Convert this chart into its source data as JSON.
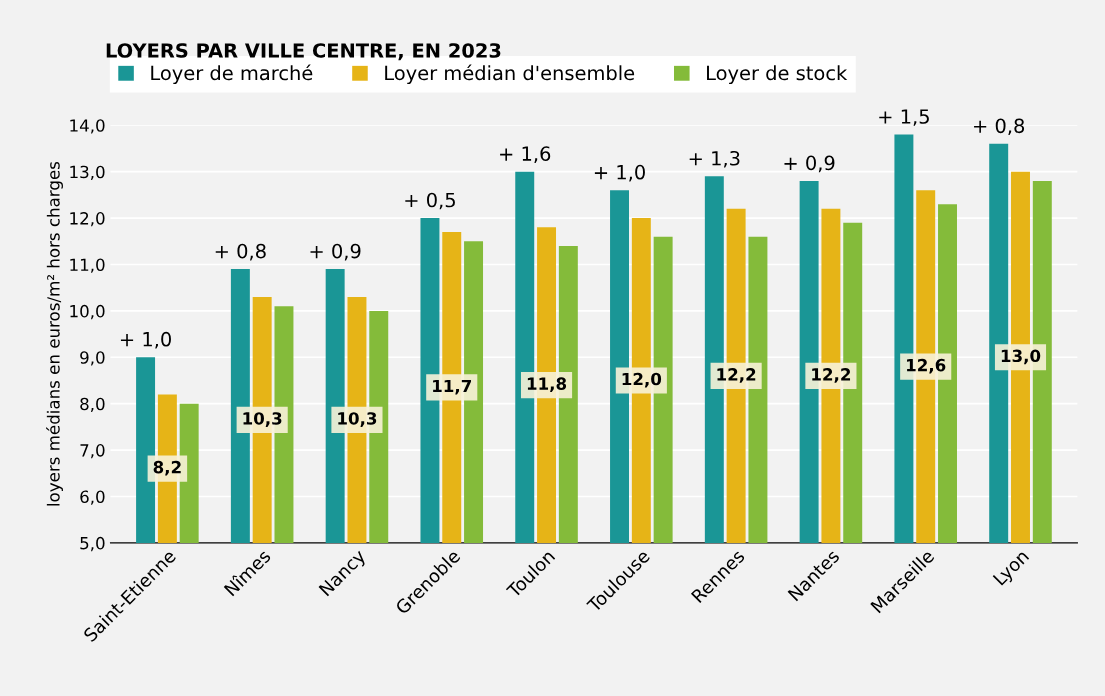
{
  "chart_data": {
    "type": "bar",
    "title": "LOYERS PAR VILLE CENTRE, EN 2023",
    "ylabel": "loyers médians en euros/m² hors charges",
    "categories": [
      "Saint-Etienne",
      "Nîmes",
      "Nancy",
      "Grenoble",
      "Toulon",
      "Toulouse",
      "Rennes",
      "Nantes",
      "Marseille",
      "Lyon"
    ],
    "series": [
      {
        "name": "Loyer de marché",
        "color": "#1a9696",
        "values": [
          9.0,
          10.9,
          10.9,
          12.0,
          13.0,
          12.6,
          12.9,
          12.8,
          13.8,
          13.6
        ]
      },
      {
        "name": "Loyer médian d'ensemble",
        "color": "#e6b417",
        "values": [
          8.2,
          10.3,
          10.3,
          11.7,
          11.8,
          12.0,
          12.2,
          12.2,
          12.6,
          13.0
        ],
        "value_labels": [
          "8,2",
          "10,3",
          "10,3",
          "11,7",
          "11,8",
          "12,0",
          "12,2",
          "12,2",
          "12,6",
          "13,0"
        ]
      },
      {
        "name": "Loyer de stock",
        "color": "#84bb3a",
        "values": [
          8.0,
          10.1,
          10.0,
          11.5,
          11.4,
          11.6,
          11.6,
          11.9,
          12.3,
          12.8
        ]
      }
    ],
    "ylim": [
      5,
      14
    ],
    "yticks": [
      {
        "value": 5,
        "label": "5,0"
      },
      {
        "value": 6,
        "label": "6,0"
      },
      {
        "value": 7,
        "label": "7,0"
      },
      {
        "value": 8,
        "label": "8,0"
      },
      {
        "value": 9,
        "label": "9,0"
      },
      {
        "value": 10,
        "label": "10,0"
      },
      {
        "value": 11,
        "label": "11,0"
      },
      {
        "value": 12,
        "label": "12,0"
      },
      {
        "value": 13,
        "label": "13,0"
      },
      {
        "value": 14,
        "label": "14,0"
      }
    ],
    "annotations": [
      {
        "text": "+ 1,0",
        "x": "Saint-Etienne",
        "y": 9.0
      },
      {
        "text": "+ 0,8",
        "x": "Nîmes",
        "y": 10.9
      },
      {
        "text": "+ 0,9",
        "x": "Nancy",
        "y": 10.9
      },
      {
        "text": "+ 0,5",
        "x": "Grenoble",
        "y": 12.0
      },
      {
        "text": "+ 1,6",
        "x": "Toulon",
        "y": 13.0
      },
      {
        "text": "+ 1,0",
        "x": "Toulouse",
        "y": 12.6
      },
      {
        "text": "+ 1,3",
        "x": "Rennes",
        "y": 12.9
      },
      {
        "text": "+ 0,9",
        "x": "Nantes",
        "y": 12.8
      },
      {
        "text": "+ 1,5",
        "x": "Marseille",
        "y": 13.8
      },
      {
        "text": "+ 0,8",
        "x": "Lyon",
        "y": 13.6
      }
    ],
    "grid": "y",
    "legend": "top"
  }
}
